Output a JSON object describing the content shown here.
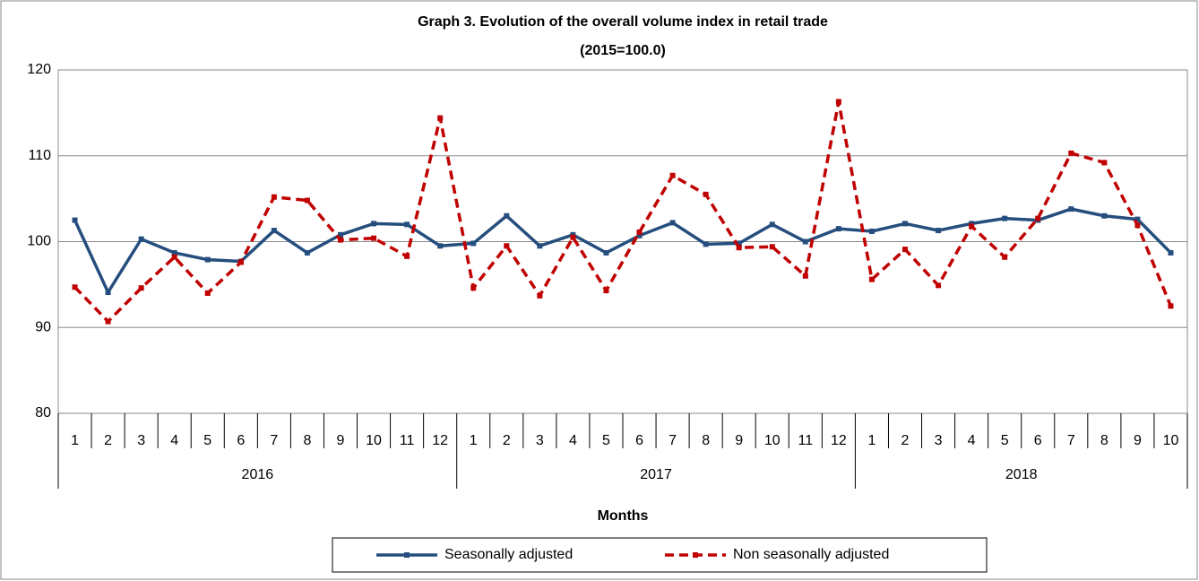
{
  "chart_data": {
    "type": "line",
    "title": "Graph 3. Evolution of the overall  volume index in retail trade",
    "subtitle": "(2015=100.0)",
    "x_label": "Months",
    "categories": [
      "1",
      "2",
      "3",
      "4",
      "5",
      "6",
      "7",
      "8",
      "9",
      "10",
      "11",
      "12",
      "1",
      "2",
      "3",
      "4",
      "5",
      "6",
      "7",
      "8",
      "9",
      "10",
      "11",
      "12",
      "1",
      "2",
      "3",
      "4",
      "5",
      "6",
      "7",
      "8",
      "9",
      "10"
    ],
    "years": [
      "2016",
      "2017",
      "2018"
    ],
    "series": [
      {
        "name": "Seasonally adjusted",
        "color": "#254e7e",
        "dashed": false,
        "values": [
          102.5,
          94.1,
          100.3,
          98.7,
          97.9,
          97.7,
          101.3,
          98.7,
          100.8,
          102.1,
          102.0,
          99.5,
          99.8,
          103.0,
          99.5,
          100.8,
          98.7,
          100.7,
          102.2,
          99.7,
          99.8,
          102.0,
          100.0,
          101.5,
          101.2,
          102.1,
          101.3,
          102.1,
          102.7,
          102.5,
          103.8,
          103.0,
          102.6,
          98.7
        ]
      },
      {
        "name": "Non seasonally adjusted",
        "color": "#c00000",
        "dashed": true,
        "values": [
          94.7,
          90.7,
          94.6,
          98.2,
          94.0,
          97.6,
          105.2,
          104.8,
          100.2,
          100.4,
          98.3,
          114.4,
          94.6,
          99.5,
          93.7,
          100.5,
          94.3,
          101.1,
          107.7,
          105.5,
          99.3,
          99.4,
          96.0,
          116.3,
          95.6,
          99.1,
          94.9,
          101.8,
          98.2,
          102.7,
          110.3,
          109.2,
          101.9,
          92.5
        ]
      }
    ],
    "ylim": [
      80,
      120
    ],
    "yticks": [
      80,
      90,
      100,
      110,
      120
    ],
    "grid": true
  }
}
